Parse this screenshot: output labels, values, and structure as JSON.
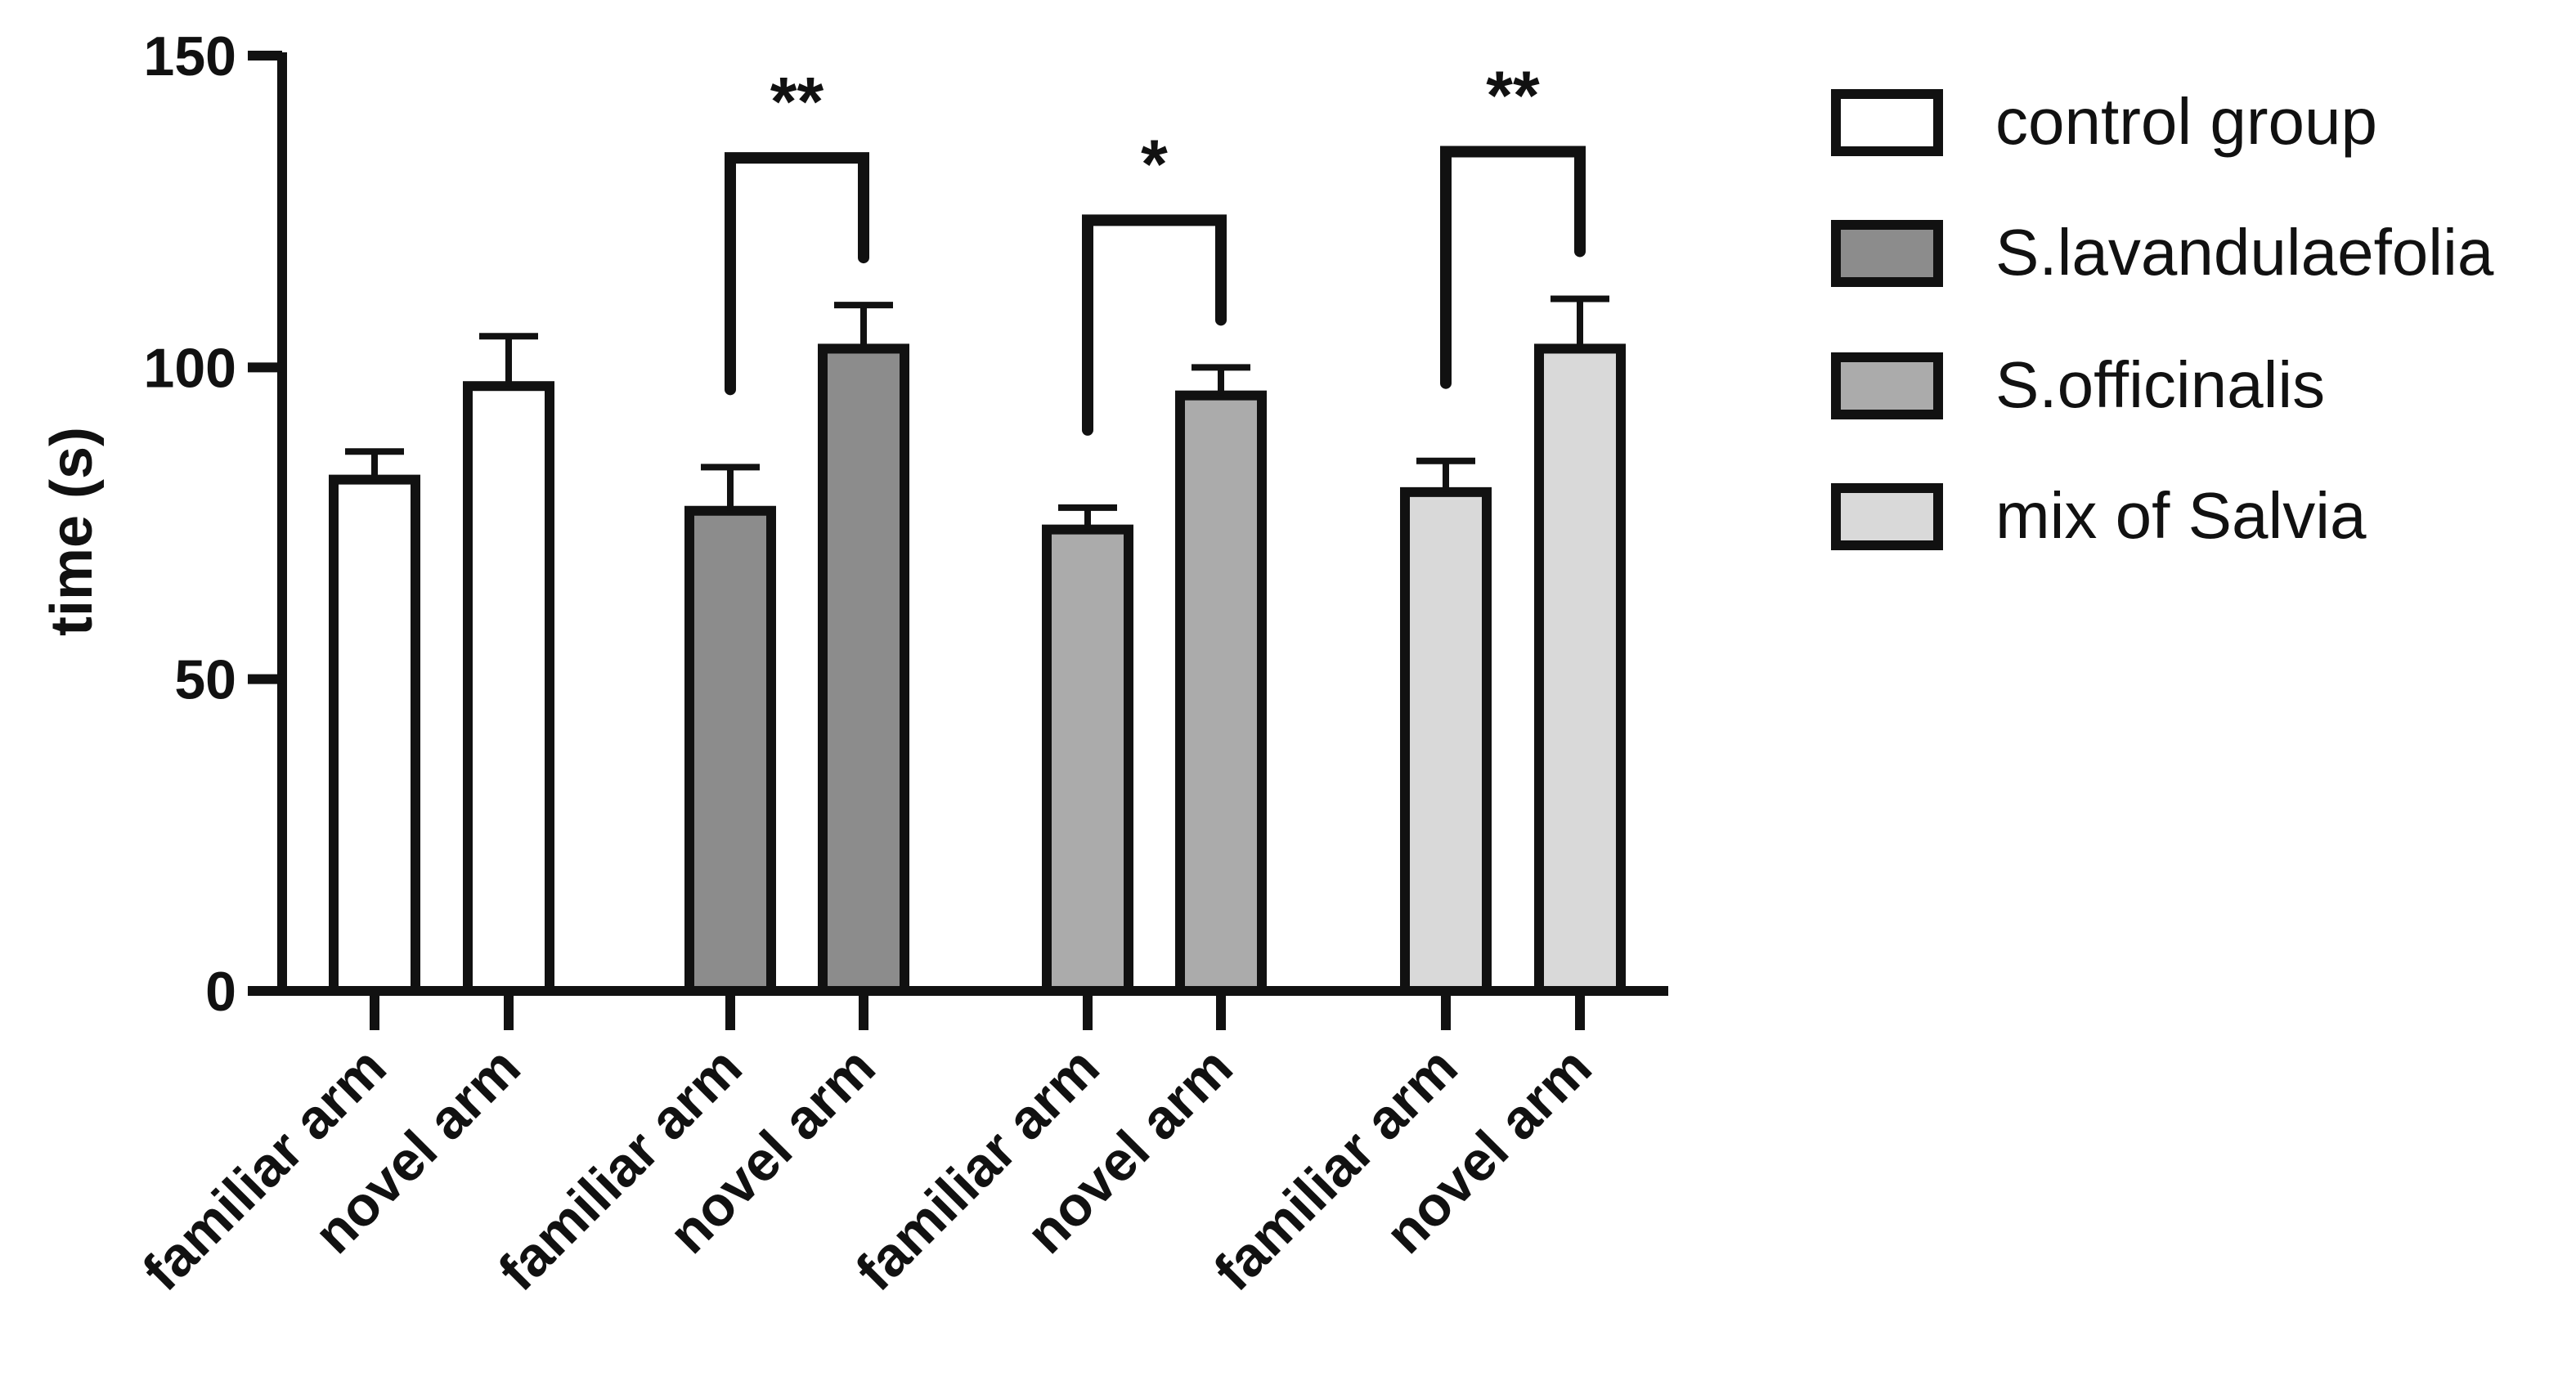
{
  "chart_data": {
    "type": "bar",
    "ylabel": "time (s)",
    "ylim": [
      0,
      150
    ],
    "yticks": [
      0,
      50,
      100,
      150
    ],
    "grid": false,
    "legend_position": "right",
    "groups": [
      {
        "name": "control group",
        "color": "#ffffff",
        "categories": [
          "familiar arm",
          "novel arm"
        ],
        "values": [
          82,
          97
        ],
        "errors": [
          4.5,
          8
        ],
        "significance": ""
      },
      {
        "name": "S.lavandulaefolia",
        "color": "#8c8c8c",
        "categories": [
          "familiar arm",
          "novel arm"
        ],
        "values": [
          77,
          103
        ],
        "errors": [
          7,
          7
        ],
        "significance": "**"
      },
      {
        "name": "S.officinalis",
        "color": "#ababab",
        "categories": [
          "familiar arm",
          "novel arm"
        ],
        "values": [
          74,
          95.5
        ],
        "errors": [
          3.5,
          4.5
        ],
        "significance": "*"
      },
      {
        "name": "mix of Salvia",
        "color": "#d9d9d9",
        "categories": [
          "familiar arm",
          "novel arm"
        ],
        "values": [
          80,
          103
        ],
        "errors": [
          5,
          8
        ],
        "significance": "**"
      }
    ]
  }
}
